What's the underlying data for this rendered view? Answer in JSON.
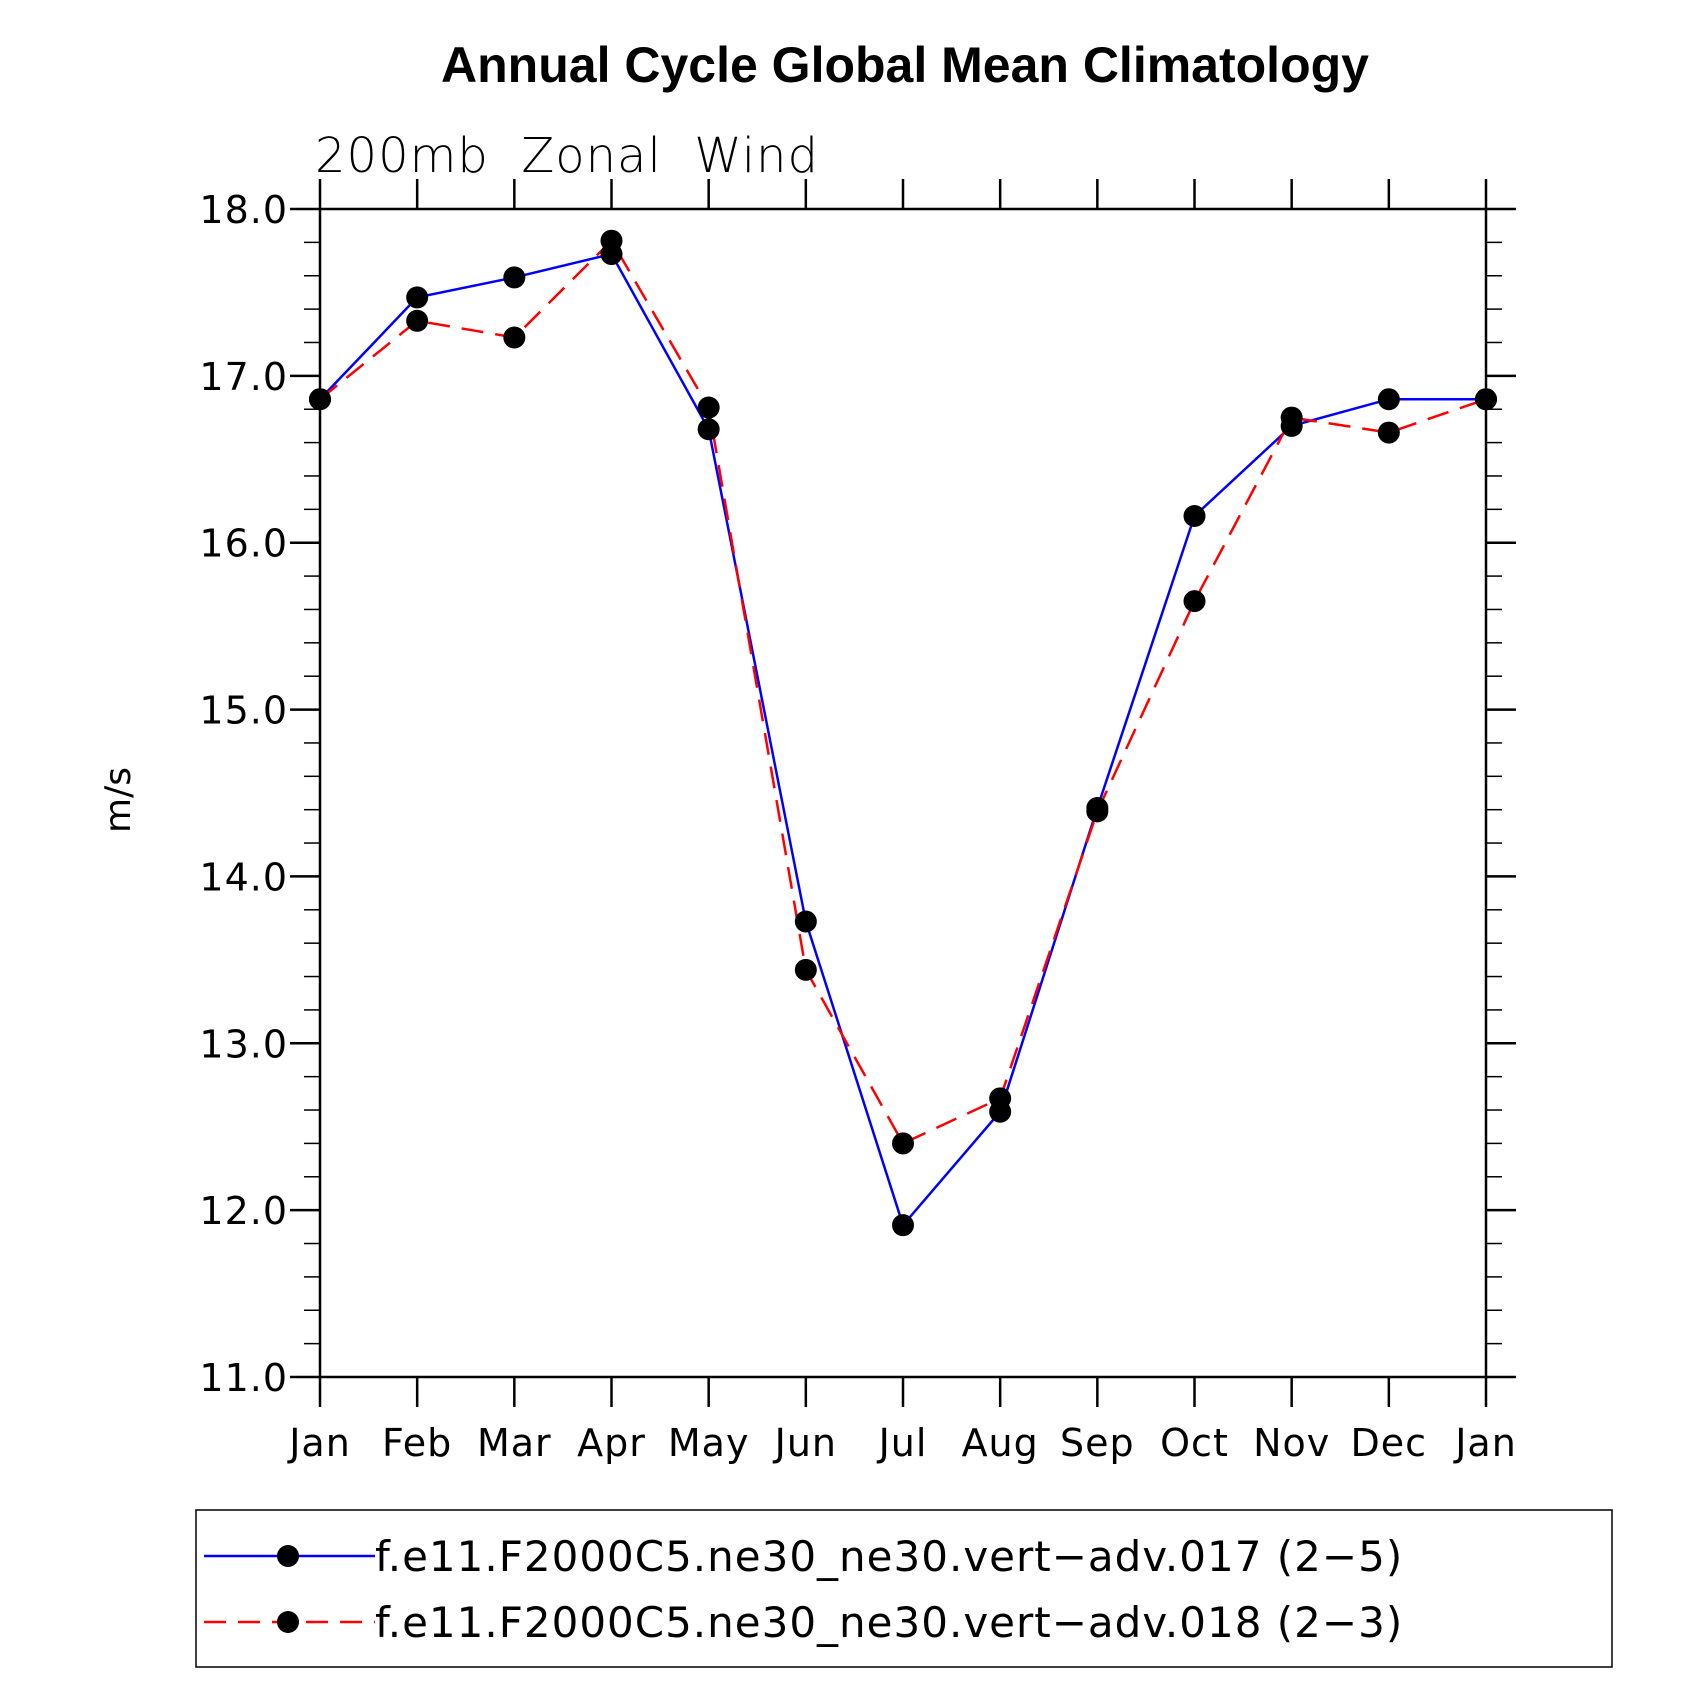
{
  "chart_data": {
    "type": "line",
    "title": "Annual Cycle Global Mean Climatology",
    "subtitle": "200mb  Zonal  Wind",
    "xlabel": "",
    "ylabel": "m/s",
    "categories": [
      "Jan",
      "Feb",
      "Mar",
      "Apr",
      "May",
      "Jun",
      "Jul",
      "Aug",
      "Sep",
      "Oct",
      "Nov",
      "Dec",
      "Jan"
    ],
    "ylim": [
      11.0,
      18.0
    ],
    "yticks": [
      "11.0",
      "12.0",
      "13.0",
      "14.0",
      "15.0",
      "16.0",
      "17.0",
      "18.0"
    ],
    "series": [
      {
        "name": "f.e11.F2000C5.ne30_ne30.vert−adv.017 (2−5)",
        "color": "#0000ff",
        "dash": "solid",
        "values": [
          16.86,
          17.47,
          17.59,
          17.73,
          16.68,
          13.73,
          11.91,
          12.59,
          14.41,
          16.16,
          16.7,
          16.86,
          16.86
        ]
      },
      {
        "name": "f.e11.F2000C5.ne30_ne30.vert−adv.018 (2−3)",
        "color": "#ff0000",
        "dash": "dashed",
        "values": [
          16.86,
          17.33,
          17.23,
          17.81,
          16.81,
          13.44,
          12.4,
          12.67,
          14.39,
          15.65,
          16.75,
          16.66,
          16.86
        ]
      }
    ],
    "marker_color": "#000000",
    "legend_position": "bottom"
  }
}
